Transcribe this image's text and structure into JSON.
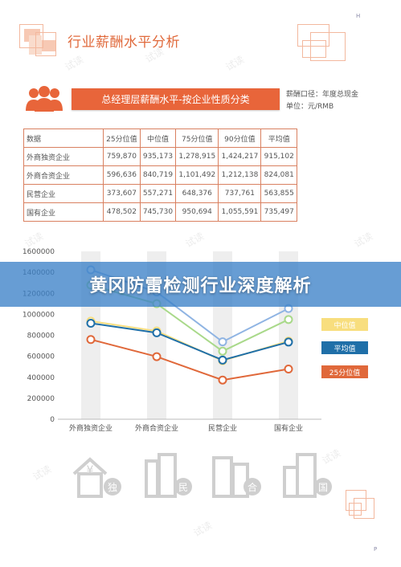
{
  "page_letter_top": "H",
  "page_letter_bottom": "P",
  "title": "行业薪酬水平分析",
  "banner": "总经理层薪酬水平-按企业性质分类",
  "notes": [
    "薪酬口径：年度总现金",
    "单位：元/RMB"
  ],
  "table": {
    "headers": [
      "数据",
      "25分位值",
      "中位值",
      "75分位值",
      "90分位值",
      "平均值"
    ],
    "rows": [
      [
        "外商独资企业",
        "759,870",
        "935,173",
        "1,278,915",
        "1,424,217",
        "915,102"
      ],
      [
        "外商合资企业",
        "596,636",
        "840,719",
        "1,101,492",
        "1,212,138",
        "824,081"
      ],
      [
        "民营企业",
        "373,607",
        "557,271",
        "648,376",
        "737,761",
        "563,855"
      ],
      [
        "国有企业",
        "478,502",
        "745,730",
        "950,694",
        "1,055,591",
        "735,497"
      ]
    ]
  },
  "overlay_banner": "黄冈防雷检测行业深度解析",
  "colors": {
    "orange": "#e8653a",
    "p25": "#e0683a",
    "median": "#f8de7e",
    "mean": "#1f6fa8",
    "p75": "#a9d98a",
    "p90": "#8fb4e3"
  },
  "chart_data": {
    "type": "line",
    "categories": [
      "外商独资企业",
      "外商合资企业",
      "民营企业",
      "国有企业"
    ],
    "ylim": [
      0,
      1600000
    ],
    "yticks": [
      "0",
      "200000",
      "400000",
      "600000",
      "800000",
      "1000000",
      "1200000",
      "1400000",
      "1600000"
    ],
    "series": [
      {
        "name": "",
        "values": [
          1424217,
          1212138,
          737761,
          1055591
        ],
        "color": "#8fb4e3"
      },
      {
        "name": "",
        "values": [
          1278915,
          1101492,
          648376,
          950694
        ],
        "color": "#a9d98a"
      },
      {
        "name": "中位值",
        "values": [
          935173,
          840719,
          557271,
          745730
        ],
        "color": "#f8de7e"
      },
      {
        "name": "平均值",
        "values": [
          915102,
          824081,
          563855,
          735497
        ],
        "color": "#1f6fa8"
      },
      {
        "name": "25分位值",
        "values": [
          759870,
          596636,
          373607,
          478502
        ],
        "color": "#e0683a"
      }
    ],
    "legend": [
      "中位值",
      "平均值",
      "25分位值"
    ]
  },
  "icon_labels": [
    "独",
    "民",
    "合",
    "国"
  ],
  "watermark_text": "试读"
}
